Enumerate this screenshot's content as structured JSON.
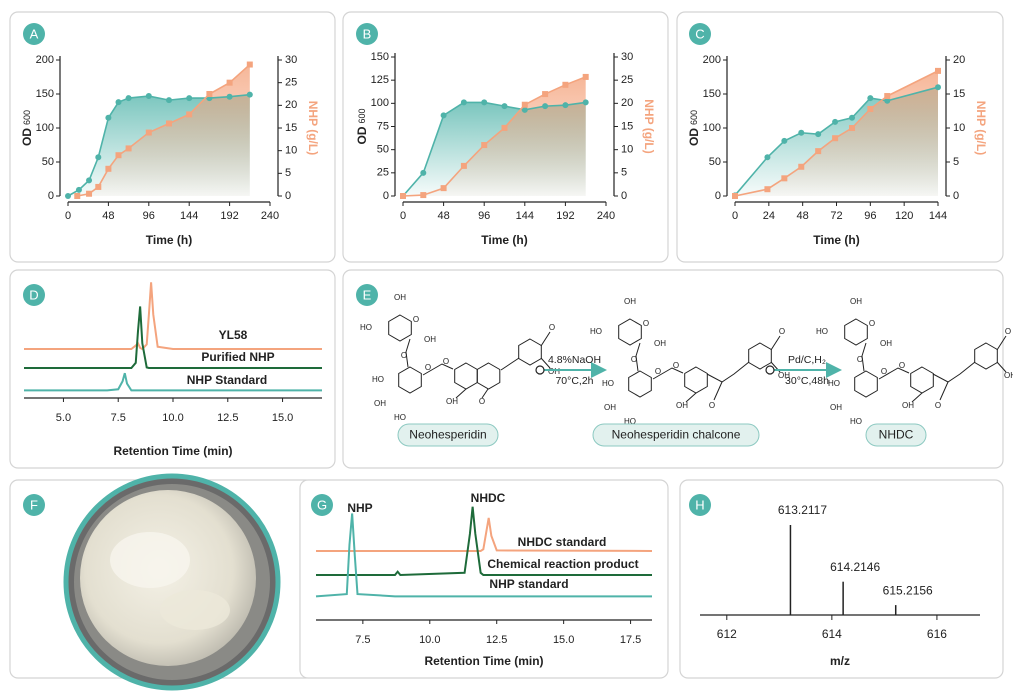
{
  "chart_data": [
    {
      "type": "line",
      "panel": "A",
      "xlabel": "Time (h)",
      "ylabel": "OD",
      "ylabel_sub": "600",
      "y2label": "NHP (g/L)",
      "xlim": [
        0,
        240
      ],
      "xticks": [
        0,
        48,
        96,
        144,
        192,
        240
      ],
      "ylim": [
        0,
        200
      ],
      "yticks": [
        0,
        50,
        100,
        150,
        200
      ],
      "y2lim": [
        0,
        30
      ],
      "y2ticks": [
        0,
        5,
        10,
        15,
        20,
        25,
        30
      ],
      "series": [
        {
          "color": "#4fb3a9",
          "marker": "circle",
          "x": [
            0,
            13,
            25,
            36,
            48,
            60,
            72,
            96,
            120,
            144,
            168,
            192,
            216
          ],
          "values": [
            0,
            9,
            23,
            57,
            115,
            138,
            144,
            147,
            141,
            144,
            144,
            146,
            149
          ]
        },
        {
          "color": "#f4a47e",
          "marker": "square",
          "axis": "y2",
          "x": [
            11,
            25,
            36,
            48,
            60,
            72,
            96,
            120,
            144,
            168,
            192,
            216
          ],
          "values": [
            0,
            0.5,
            2,
            6,
            9,
            10.5,
            14,
            16,
            18,
            22.5,
            25,
            29
          ]
        }
      ]
    },
    {
      "type": "line",
      "panel": "B",
      "xlabel": "Time (h)",
      "ylabel": "OD",
      "ylabel_sub": "600",
      "y2label": "NHP (g/L)",
      "xlim": [
        0,
        240
      ],
      "xticks": [
        0,
        48,
        96,
        144,
        192,
        240
      ],
      "ylim": [
        0,
        150
      ],
      "yticks": [
        0,
        25,
        50,
        75,
        100,
        125,
        150
      ],
      "y2lim": [
        0,
        30
      ],
      "y2ticks": [
        0,
        5,
        10,
        15,
        20,
        25,
        30
      ],
      "series": [
        {
          "color": "#4fb3a9",
          "marker": "circle",
          "x": [
            0,
            24,
            48,
            72,
            96,
            120,
            144,
            168,
            192,
            216
          ],
          "values": [
            0,
            25,
            87,
            101,
            101,
            97,
            93,
            97,
            98,
            101
          ]
        },
        {
          "color": "#f4a47e",
          "marker": "square",
          "axis": "y2",
          "x": [
            0,
            24,
            48,
            72,
            96,
            120,
            144,
            168,
            192,
            216
          ],
          "values": [
            0,
            0.2,
            1.7,
            6.5,
            11,
            14.7,
            19.7,
            22,
            24,
            25.7
          ]
        }
      ]
    },
    {
      "type": "line",
      "panel": "C",
      "xlabel": "Time (h)",
      "ylabel": "OD",
      "ylabel_sub": "600",
      "y2label": "NHP (g/L)",
      "xlim": [
        0,
        144
      ],
      "xticks": [
        0,
        24,
        48,
        72,
        96,
        120,
        144
      ],
      "ylim": [
        0,
        200
      ],
      "yticks": [
        0,
        50,
        100,
        150,
        200
      ],
      "y2lim": [
        0,
        20
      ],
      "y2ticks": [
        0,
        5,
        10,
        15,
        20
      ],
      "series": [
        {
          "color": "#4fb3a9",
          "marker": "circle",
          "x": [
            0,
            23,
            35,
            47,
            59,
            71,
            83,
            96,
            108,
            144
          ],
          "values": [
            1,
            57,
            81,
            93,
            91,
            109,
            115,
            144,
            140,
            160
          ]
        },
        {
          "color": "#f4a47e",
          "marker": "square",
          "axis": "y2",
          "x": [
            0,
            23,
            35,
            47,
            59,
            71,
            83,
            96,
            108,
            144
          ],
          "values": [
            0,
            1,
            2.6,
            4.3,
            6.6,
            8.5,
            10,
            12.8,
            14.7,
            18.4
          ]
        }
      ]
    },
    {
      "type": "chromatogram",
      "panel": "D",
      "xlabel": "Retention Time (min)",
      "xlim": [
        3.2,
        16.8
      ],
      "xticks": [
        {
          "value": 5,
          "label": "5.0"
        },
        7.5,
        {
          "value": 10,
          "label": "10.0"
        },
        12.5,
        {
          "value": 15,
          "label": "15.0"
        }
      ],
      "ylim": [
        0,
        100
      ],
      "x": [
        3.2,
        7.0,
        7.5,
        7.7,
        7.8,
        7.9,
        8.1,
        8.3,
        8.4,
        8.5,
        8.6,
        8.8,
        8.9,
        9.0,
        9.1,
        9.3,
        10,
        16.8
      ],
      "series": [
        {
          "name": "YL58",
          "color": "#f4a47e",
          "values": [
            40,
            40,
            40,
            40,
            40,
            40,
            40,
            43,
            45,
            41,
            40,
            44,
            70,
            98,
            70,
            42,
            40,
            40
          ]
        },
        {
          "name": "Purified NHP",
          "color": "#1e6b3a",
          "values": [
            23.5,
            23.5,
            23.5,
            23.5,
            23.5,
            23.5,
            23.5,
            28,
            55,
            77,
            45,
            24,
            23.5,
            23.5,
            23.5,
            23.5,
            23.5,
            23.5
          ]
        },
        {
          "name": "NHP Standard",
          "color": "#4fb3a9",
          "values": [
            4,
            4,
            5,
            12,
            19,
            10,
            4,
            4,
            4,
            4,
            4,
            4,
            4,
            4,
            4,
            4,
            4,
            4
          ]
        }
      ]
    },
    {
      "type": "chromatogram",
      "panel": "G",
      "xlabel": "Retention Time (min)",
      "annotations": [
        "NHP",
        "NHDC"
      ],
      "xlim": [
        5.75,
        18.3
      ],
      "xticks": [
        7.5,
        {
          "value": 10,
          "label": "10.0"
        },
        12.5,
        {
          "value": 15,
          "label": "15.0"
        },
        17.5
      ],
      "ylim": [
        0,
        100
      ],
      "x": [
        5.75,
        6.9,
        7.0,
        7.1,
        7.2,
        7.3,
        8.7,
        8.8,
        8.9,
        11.3,
        11.5,
        11.6,
        11.7,
        11.9,
        12.0,
        12.1,
        12.2,
        12.3,
        12.5,
        18.3
      ],
      "series": [
        {
          "name": "NHDC standard",
          "color": "#f4a47e",
          "values": [
            54.5,
            54.5,
            54.5,
            54.5,
            54.5,
            54.5,
            54.5,
            54.5,
            54.5,
            54.5,
            54.5,
            54.5,
            54.5,
            54.5,
            56,
            70,
            84,
            68,
            55,
            54.5
          ]
        },
        {
          "name": "Chemical reaction product",
          "color": "#1e6b3a",
          "values": [
            33,
            33,
            33,
            33,
            33,
            33,
            33,
            36,
            33,
            35,
            70,
            94,
            70,
            35,
            33,
            33,
            33,
            33,
            33,
            33
          ]
        },
        {
          "name": "NHP standard",
          "color": "#4fb3a9",
          "values": [
            14,
            16,
            60,
            88,
            50,
            16,
            14,
            14,
            14,
            14,
            14,
            14,
            14,
            14,
            14,
            14,
            14,
            14,
            14,
            14
          ]
        }
      ]
    },
    {
      "type": "spectrum",
      "panel": "H",
      "xlabel": "m/z",
      "color": "#222222",
      "xlim": [
        611.49,
        616.82
      ],
      "xticks": [
        612,
        614,
        616
      ],
      "ylim": [
        0,
        100
      ],
      "x": [
        613.2117,
        614.2146,
        615.2156
      ],
      "values": [
        100,
        37,
        11
      ]
    }
  ],
  "diagram": {
    "panel": "E",
    "compounds": [
      {
        "name": "Neohesperidin",
        "atoms": [
          "OH",
          "HO",
          "O",
          "OH",
          "O",
          "HO",
          "O",
          "OH",
          "HO",
          "O",
          "OH",
          "O",
          "O",
          "OH"
        ]
      },
      {
        "name": "Neohesperidin chalcone",
        "atoms": [
          "OH",
          "HO",
          "O",
          "OH",
          "O",
          "HO",
          "O",
          "OH",
          "HO",
          "O",
          "OH",
          "O",
          "O",
          "OH"
        ]
      },
      {
        "name": "NHDC",
        "atoms": [
          "OH",
          "HO",
          "O",
          "OH",
          "O",
          "HO",
          "O",
          "OH",
          "HO",
          "O",
          "OH",
          "O",
          "O",
          "OH"
        ]
      }
    ],
    "steps": [
      {
        "reagent": "4.8%NaOH",
        "conditions": "70°C,2h"
      },
      {
        "reagent": "Pd/C,H₂",
        "conditions": "30°C,48h"
      }
    ]
  },
  "photo": {
    "panel": "F"
  }
}
